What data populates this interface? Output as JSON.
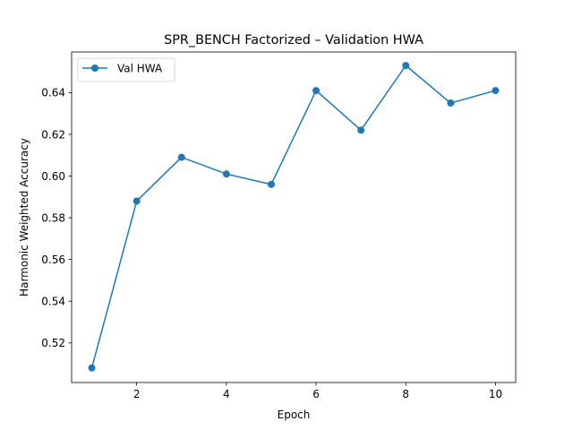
{
  "chart_data": {
    "type": "line",
    "title": "SPR_BENCH Factorized – Validation HWA",
    "xlabel": "Epoch",
    "ylabel": "Harmonic Weighted Accuracy",
    "x": [
      1,
      2,
      3,
      4,
      5,
      6,
      7,
      8,
      9,
      10
    ],
    "series": [
      {
        "name": "Val HWA",
        "values": [
          0.508,
          0.588,
          0.609,
          0.601,
          0.596,
          0.641,
          0.622,
          0.653,
          0.635,
          0.641
        ],
        "color": "#1f77b4",
        "marker": "circle"
      }
    ],
    "xlim": [
      0.55,
      10.45
    ],
    "ylim": [
      0.501,
      0.6595
    ],
    "xticks": [
      2,
      4,
      6,
      8,
      10
    ],
    "yticks": [
      0.52,
      0.54,
      0.56,
      0.58,
      0.6,
      0.62,
      0.64
    ],
    "xtick_labels": [
      "2",
      "4",
      "6",
      "8",
      "10"
    ],
    "ytick_labels": [
      "0.52",
      "0.54",
      "0.56",
      "0.58",
      "0.60",
      "0.62",
      "0.64"
    ],
    "grid": false,
    "legend_position": "top-left"
  }
}
